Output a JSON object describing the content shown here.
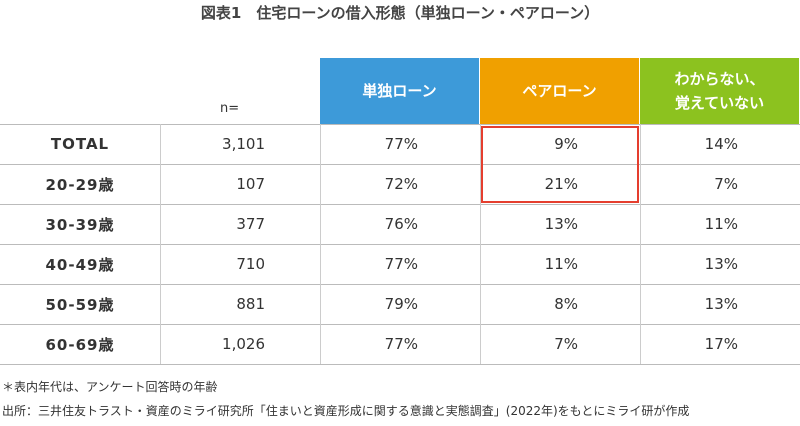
{
  "title": "図表1　住宅ローンの借入形態（単独ローン・ペアローン）",
  "table": {
    "header": [
      [
        "n="
      ],
      [
        "単独ローン"
      ],
      [
        "ペアローン"
      ],
      [
        "わからない、",
        "覚えていない"
      ]
    ],
    "rows": [
      [
        "TOTAL",
        "3,101",
        "77%",
        "9%",
        "14%"
      ],
      [
        "20-29歳",
        "107",
        "72%",
        "21%",
        "7%"
      ],
      [
        "30-39歳",
        "377",
        "76%",
        "13%",
        "11%"
      ],
      [
        "40-49歳",
        "710",
        "77%",
        "11%",
        "13%"
      ],
      [
        "50-59歳",
        "881",
        "79%",
        "8%",
        "13%"
      ],
      [
        "60-69歳",
        "1,026",
        "77%",
        "7%",
        "17%"
      ]
    ]
  },
  "notes": [
    "＊表内年代は、アンケート回答時の年齢",
    "出所：三井住友トラスト・資産のミライ研究所「住まいと資産形成に関する意識と実態調査」(2022年)をもとにミライ研が作成"
  ]
}
